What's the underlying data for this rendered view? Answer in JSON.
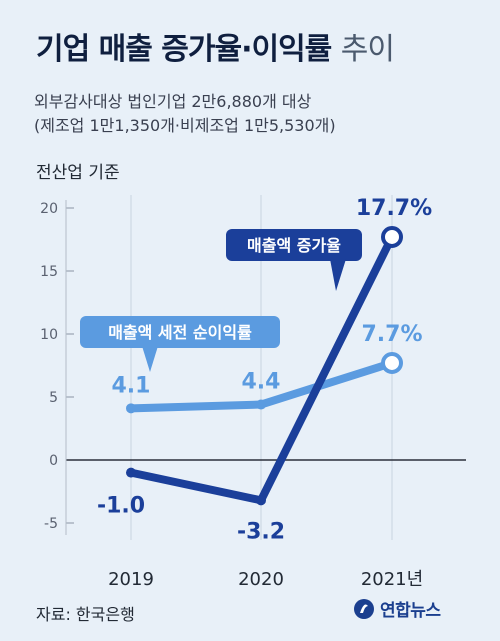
{
  "header": {
    "title_bold": "기업 매출 증가율·이익률",
    "title_light": "추이",
    "subtitle_line1": "외부감사대상 법인기업 2만6,880개 대상",
    "subtitle_line2": "(제조업 1만1,350개·비제조업 1만5,530개)",
    "unit_label": "전산업 기준"
  },
  "footer": {
    "source": "자료: 한국은행",
    "logo_text": "연합뉴스"
  },
  "chart_data": {
    "type": "line",
    "categories": [
      "2019",
      "2020",
      "2021년"
    ],
    "yticks": [
      20,
      15,
      10,
      5,
      0,
      -5
    ],
    "ylim": [
      -5,
      20
    ],
    "series": [
      {
        "name": "매출액 증가율",
        "values": [
          -1.0,
          -3.2,
          17.7
        ],
        "labels": [
          "-1.0",
          "-3.2",
          "17.7%"
        ],
        "color": "#1b3f9a"
      },
      {
        "name": "매출액 세전 순이익률",
        "values": [
          4.1,
          4.4,
          7.7
        ],
        "labels": [
          "4.1",
          "4.4",
          "7.7%"
        ],
        "color": "#5b9be0"
      }
    ]
  }
}
